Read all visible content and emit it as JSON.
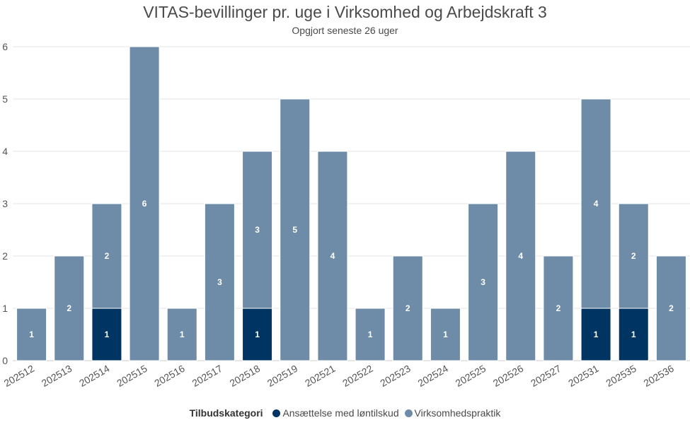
{
  "chart_data": {
    "type": "bar",
    "stacked": true,
    "title": "VITAS-bevillinger pr. uge i Virksomhed og Arbejdskraft 3",
    "subtitle": "Opgjort seneste 26 uger",
    "categories": [
      "202512",
      "202513",
      "202514",
      "202515",
      "202516",
      "202517",
      "202518",
      "202519",
      "202521",
      "202522",
      "202523",
      "202524",
      "202525",
      "202526",
      "202527",
      "202531",
      "202535",
      "202536"
    ],
    "series": [
      {
        "name": "Ansættelse med løntilskud",
        "color": "#003462",
        "values": [
          0,
          0,
          1,
          0,
          0,
          0,
          1,
          0,
          0,
          0,
          0,
          0,
          0,
          0,
          0,
          1,
          1,
          0
        ]
      },
      {
        "name": "Virksomhedspraktik",
        "color": "#6e8ca7",
        "values": [
          1,
          2,
          2,
          6,
          1,
          3,
          3,
          5,
          4,
          1,
          2,
          1,
          3,
          4,
          2,
          4,
          2,
          2
        ]
      }
    ],
    "ylim": [
      0,
      6
    ],
    "yticks": [
      0,
      1,
      2,
      3,
      4,
      5,
      6
    ],
    "grid": true,
    "legend": {
      "title": "Tilbudskategori",
      "placement": "bottom"
    }
  }
}
